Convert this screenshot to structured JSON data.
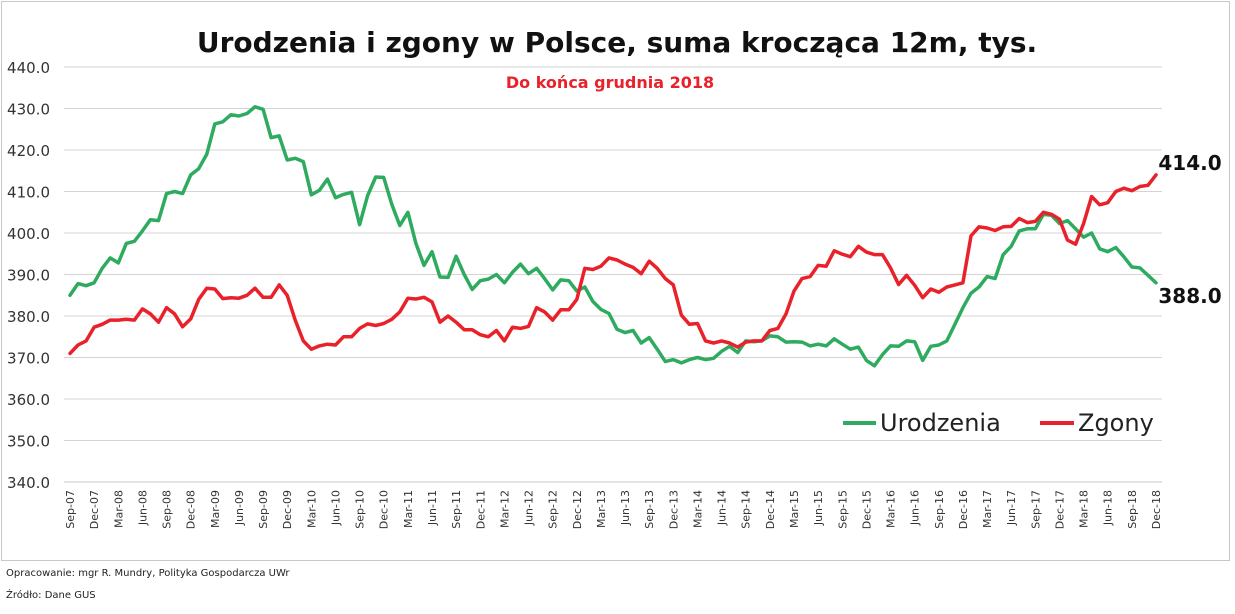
{
  "chart_data": {
    "type": "line",
    "title": "Urodzenia i zgony w Polsce, suma krocząca 12m, tys.",
    "subtitle": "Do końca grudnia 2018",
    "ylim": [
      340,
      440
    ],
    "yticks": [
      "340.0",
      "350.0",
      "360.0",
      "370.0",
      "380.0",
      "390.0",
      "400.0",
      "410.0",
      "420.0",
      "430.0",
      "440.0"
    ],
    "grid": true,
    "legend_position": "bottom-right",
    "x": [
      "Sep-07",
      "Oct-07",
      "Nov-07",
      "Dec-07",
      "Jan-08",
      "Feb-08",
      "Mar-08",
      "Apr-08",
      "May-08",
      "Jun-08",
      "Jul-08",
      "Aug-08",
      "Sep-08",
      "Oct-08",
      "Nov-08",
      "Dec-08",
      "Jan-09",
      "Feb-09",
      "Mar-09",
      "Apr-09",
      "May-09",
      "Jun-09",
      "Jul-09",
      "Aug-09",
      "Sep-09",
      "Oct-09",
      "Nov-09",
      "Dec-09",
      "Jan-10",
      "Feb-10",
      "Mar-10",
      "Apr-10",
      "May-10",
      "Jun-10",
      "Jul-10",
      "Aug-10",
      "Sep-10",
      "Oct-10",
      "Nov-10",
      "Dec-10",
      "Jan-11",
      "Feb-11",
      "Mar-11",
      "Apr-11",
      "May-11",
      "Jun-11",
      "Jul-11",
      "Aug-11",
      "Sep-11",
      "Oct-11",
      "Nov-11",
      "Dec-11",
      "Jan-12",
      "Feb-12",
      "Mar-12",
      "Apr-12",
      "May-12",
      "Jun-12",
      "Jul-12",
      "Aug-12",
      "Sep-12",
      "Oct-12",
      "Nov-12",
      "Dec-12",
      "Jan-13",
      "Feb-13",
      "Mar-13",
      "Apr-13",
      "May-13",
      "Jun-13",
      "Jul-13",
      "Aug-13",
      "Sep-13",
      "Oct-13",
      "Nov-13",
      "Dec-13",
      "Jan-14",
      "Feb-14",
      "Mar-14",
      "Apr-14",
      "May-14",
      "Jun-14",
      "Jul-14",
      "Aug-14",
      "Sep-14",
      "Oct-14",
      "Nov-14",
      "Dec-14",
      "Jan-15",
      "Feb-15",
      "Mar-15",
      "Apr-15",
      "May-15",
      "Jun-15",
      "Jul-15",
      "Aug-15",
      "Sep-15",
      "Oct-15",
      "Nov-15",
      "Dec-15",
      "Jan-16",
      "Feb-16",
      "Mar-16",
      "Apr-16",
      "May-16",
      "Jun-16",
      "Jul-16",
      "Aug-16",
      "Sep-16",
      "Oct-16",
      "Nov-16",
      "Dec-16",
      "Jan-17",
      "Feb-17",
      "Mar-17",
      "Apr-17",
      "May-17",
      "Jun-17",
      "Jul-17",
      "Aug-17",
      "Sep-17",
      "Oct-17",
      "Nov-17",
      "Dec-17",
      "Jan-18",
      "Feb-18",
      "Mar-18",
      "Apr-18",
      "May-18",
      "Jun-18",
      "Jul-18",
      "Aug-18",
      "Sep-18",
      "Oct-18",
      "Nov-18",
      "Dec-18"
    ],
    "tick_labels": [
      "Sep-07",
      "Dec-07",
      "Mar-08",
      "Jun-08",
      "Sep-08",
      "Dec-08",
      "Mar-09",
      "Jun-09",
      "Sep-09",
      "Dec-09",
      "Mar-10",
      "Jun-10",
      "Sep-10",
      "Dec-10",
      "Mar-11",
      "Jun-11",
      "Sep-11",
      "Dec-11",
      "Mar-12",
      "Jun-12",
      "Sep-12",
      "Dec-12",
      "Mar-13",
      "Jun-13",
      "Sep-13",
      "Dec-13",
      "Mar-14",
      "Jun-14",
      "Sep-14",
      "Dec-14",
      "Mar-15",
      "Jun-15",
      "Sep-15",
      "Dec-15",
      "Mar-16",
      "Jun-16",
      "Sep-16",
      "Dec-16",
      "Mar-17",
      "Jun-17",
      "Sep-17",
      "Dec-17",
      "Mar-18",
      "Jun-18",
      "Sep-18",
      "Dec-18"
    ],
    "series": [
      {
        "name": "Urodzenia",
        "color": "#2eab5f",
        "values": [
          385.0,
          387.8,
          387.3,
          388.0,
          391.5,
          394.0,
          392.8,
          397.5,
          398.0,
          400.5,
          403.2,
          403.0,
          409.5,
          410.0,
          409.5,
          414.0,
          415.5,
          419.0,
          426.3,
          426.8,
          428.5,
          428.2,
          428.8,
          430.4,
          429.8,
          423.0,
          423.4,
          417.6,
          418.0,
          417.2,
          409.2,
          410.3,
          413.0,
          408.5,
          409.3,
          409.8,
          402.0,
          409.0,
          413.5,
          413.4,
          406.9,
          401.8,
          405.0,
          397.5,
          392.2,
          395.5,
          389.4,
          389.3,
          394.4,
          390.0,
          386.4,
          388.5,
          388.9,
          390.0,
          388.0,
          390.5,
          392.5,
          390.2,
          391.5,
          389.0,
          386.3,
          388.7,
          388.5,
          386.0,
          387.0,
          383.5,
          381.6,
          380.6,
          376.8,
          376.0,
          376.5,
          373.5,
          374.8,
          372.0,
          369.0,
          369.5,
          368.7,
          369.5,
          370.0,
          369.5,
          369.8,
          371.5,
          372.7,
          371.2,
          374.0,
          373.8,
          374.0,
          375.2,
          375.0,
          373.7,
          373.8,
          373.7,
          372.8,
          373.2,
          372.8,
          374.5,
          373.2,
          372.0,
          372.5,
          369.3,
          368.0,
          370.7,
          372.8,
          372.7,
          374.0,
          373.8,
          369.3,
          372.7,
          373.0,
          374.0,
          378.0,
          382.0,
          385.5,
          387.0,
          389.5,
          389.0,
          394.8,
          396.8,
          400.5,
          401.0,
          401.0,
          404.5,
          404.3,
          402.3,
          403.0,
          401.0,
          399.0,
          400.0,
          396.2,
          395.5,
          396.5,
          394.3,
          391.8,
          391.6,
          389.8,
          388.0
        ]
      },
      {
        "name": "Zgony",
        "color": "#e8212a",
        "values": [
          371.0,
          373.0,
          374.0,
          377.3,
          378.0,
          379.0,
          379.0,
          379.2,
          379.0,
          381.7,
          380.5,
          378.5,
          382.0,
          380.5,
          377.4,
          379.3,
          384.0,
          386.7,
          386.5,
          384.2,
          384.4,
          384.3,
          385.0,
          386.7,
          384.5,
          384.5,
          387.5,
          385.0,
          379.0,
          374.0,
          372.0,
          372.8,
          373.2,
          373.0,
          375.0,
          375.0,
          377.0,
          378.1,
          377.7,
          378.2,
          379.2,
          381.0,
          384.3,
          384.1,
          384.5,
          383.4,
          378.5,
          380.0,
          378.5,
          376.7,
          376.7,
          375.5,
          375.0,
          376.5,
          374.0,
          377.3,
          377.0,
          377.5,
          382.0,
          381.0,
          379.0,
          381.5,
          381.5,
          384.0,
          391.5,
          391.2,
          392.0,
          394.0,
          393.5,
          392.5,
          391.7,
          390.2,
          393.2,
          391.5,
          389.0,
          387.5,
          380.2,
          378.0,
          378.2,
          374.0,
          373.5,
          374.0,
          373.5,
          372.5,
          373.7,
          374.0,
          374.0,
          376.5,
          377.0,
          380.5,
          386.0,
          389.0,
          389.5,
          392.2,
          392.0,
          395.7,
          394.9,
          394.3,
          396.8,
          395.4,
          394.8,
          394.8,
          391.6,
          387.6,
          389.8,
          387.4,
          384.4,
          386.5,
          385.7,
          387.0,
          387.5,
          388.0,
          399.3,
          401.5,
          401.2,
          400.6,
          401.5,
          401.6,
          403.5,
          402.5,
          402.8,
          405.0,
          404.5,
          403.3,
          398.3,
          397.3,
          402.3,
          408.8,
          406.8,
          407.3,
          410.0,
          410.8,
          410.2,
          411.2,
          411.5,
          414.0
        ]
      }
    ],
    "end_labels": {
      "urodzenia": "388.0",
      "zgony": "414.0"
    },
    "annotations": {
      "source_author": "Opracowanie: mgr R. Mundry, Polityka Gospodarcza UWr",
      "source_data": "Źródło: Dane GUS"
    }
  }
}
